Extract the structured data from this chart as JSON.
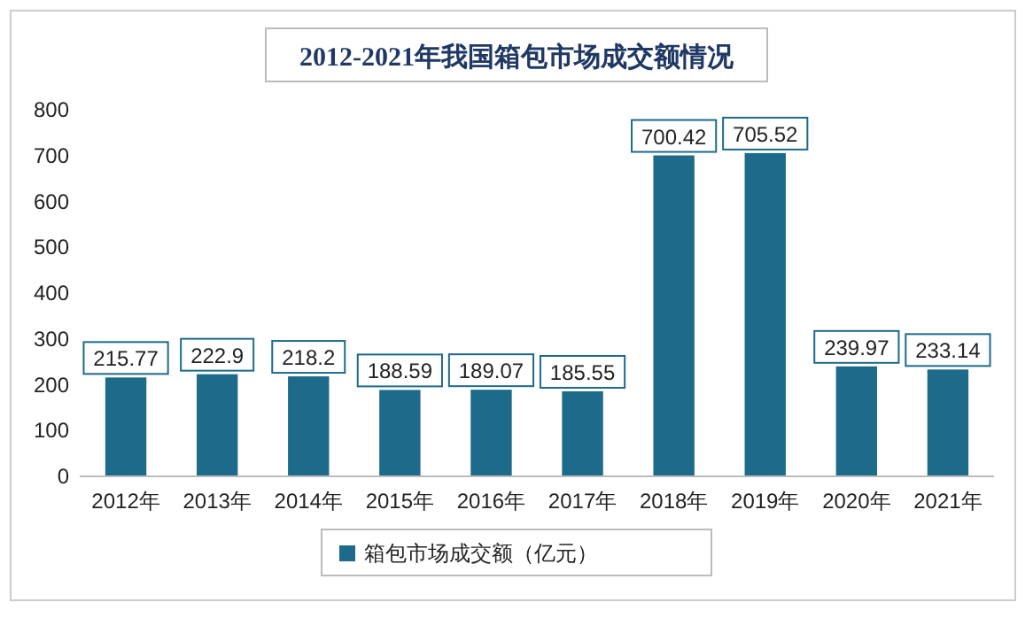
{
  "chart_data": {
    "type": "bar",
    "title": "2012-2021年我国箱包市场成交额情况",
    "categories": [
      "2012年",
      "2013年",
      "2014年",
      "2015年",
      "2016年",
      "2017年",
      "2018年",
      "2019年",
      "2020年",
      "2021年"
    ],
    "series": [
      {
        "name": "箱包市场成交额（亿元）",
        "color": "#1d6a8a",
        "values": [
          215.77,
          222.9,
          218.2,
          188.59,
          189.07,
          185.55,
          700.42,
          705.52,
          239.97,
          233.14
        ]
      }
    ],
    "ylim": [
      0,
      800
    ],
    "yticks": [
      0,
      100,
      200,
      300,
      400,
      500,
      600,
      700,
      800
    ],
    "grid": false,
    "legend": "bottom",
    "data_labels": true
  }
}
